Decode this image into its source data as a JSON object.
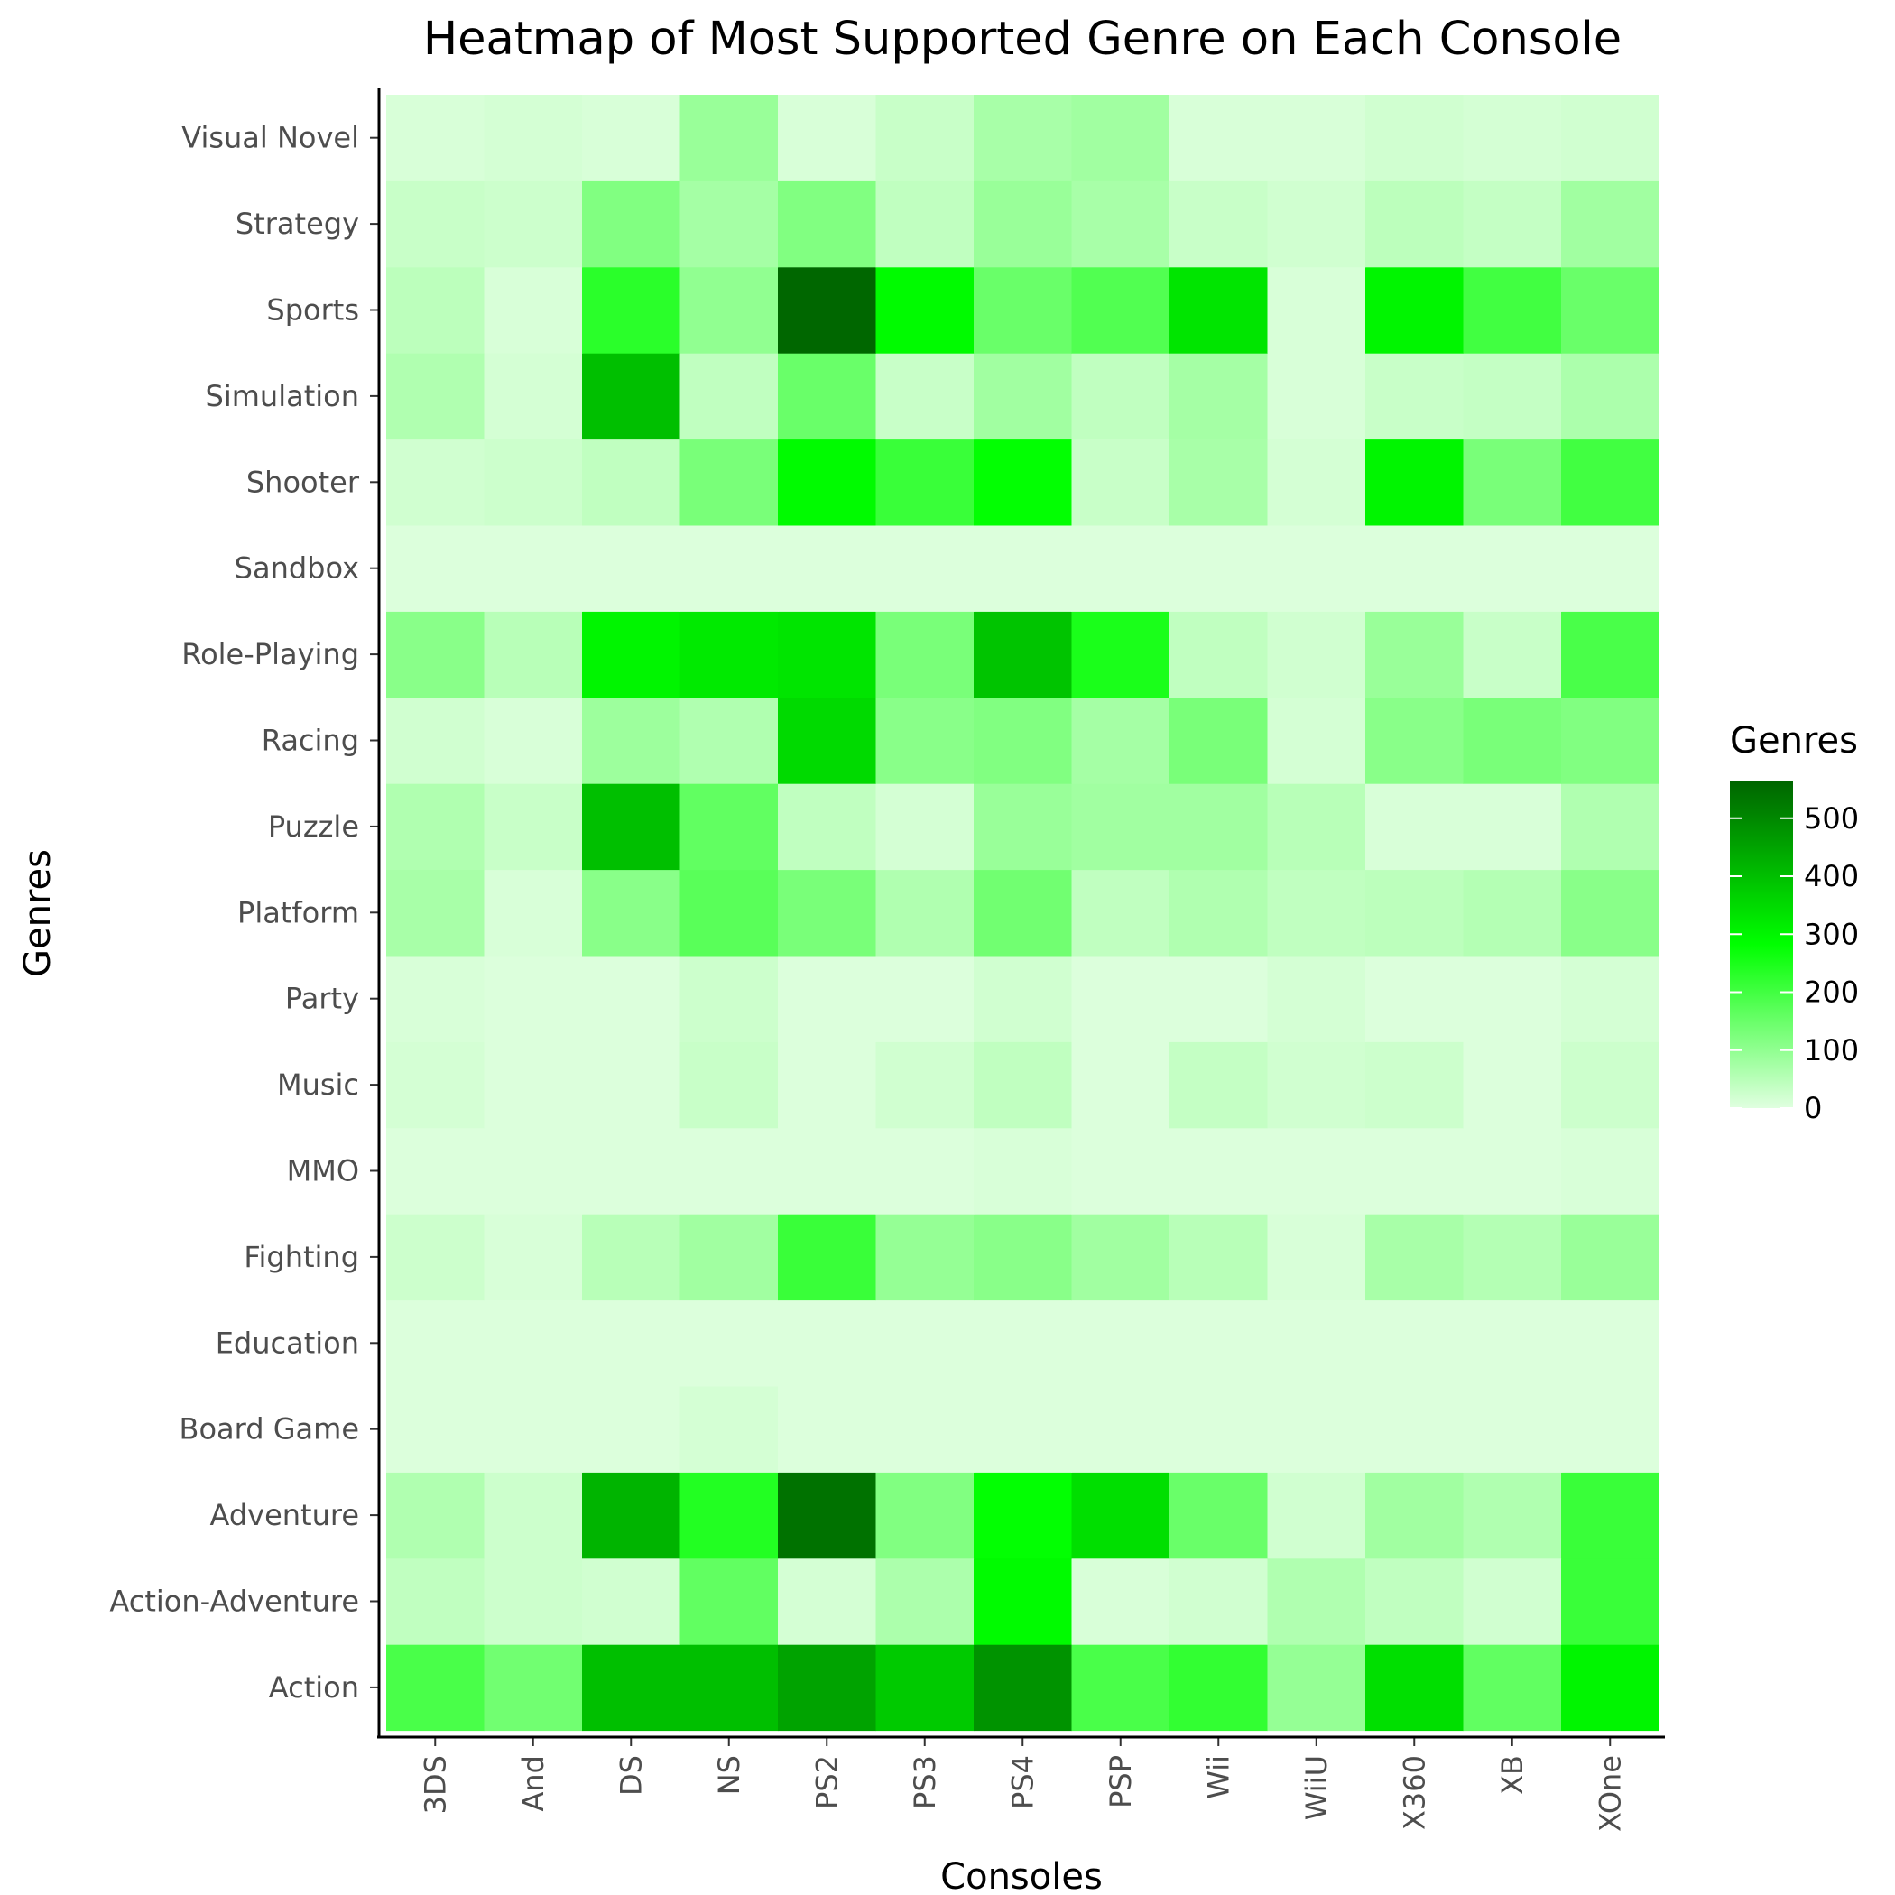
{
  "chart_data": {
    "type": "heatmap",
    "title": "Heatmap of Most Supported Genre on Each Console",
    "xlabel": "Consoles",
    "ylabel": "Genres",
    "x_categories": [
      "3DS",
      "And",
      "DS",
      "NS",
      "PS2",
      "PS3",
      "PS4",
      "PSP",
      "Wii",
      "WiiU",
      "X360",
      "XB",
      "XOne"
    ],
    "y_categories": [
      "Action",
      "Action-Adventure",
      "Adventure",
      "Board Game",
      "Education",
      "Fighting",
      "MMO",
      "Music",
      "Party",
      "Platform",
      "Puzzle",
      "Racing",
      "Role-Playing",
      "Sandbox",
      "Shooter",
      "Simulation",
      "Sports",
      "Strategy",
      "Visual Novel"
    ],
    "values": [
      [
        190,
        140,
        400,
        400,
        450,
        380,
        480,
        190,
        220,
        95,
        340,
        160,
        300
      ],
      [
        40,
        25,
        20,
        160,
        15,
        65,
        290,
        10,
        20,
        60,
        40,
        20,
        210
      ],
      [
        60,
        25,
        420,
        240,
        540,
        120,
        280,
        340,
        150,
        20,
        80,
        60,
        210
      ],
      [
        5,
        5,
        5,
        15,
        5,
        5,
        5,
        5,
        5,
        5,
        5,
        5,
        5
      ],
      [
        5,
        5,
        5,
        5,
        5,
        5,
        5,
        5,
        5,
        5,
        5,
        5,
        5
      ],
      [
        25,
        10,
        50,
        80,
        210,
        95,
        110,
        80,
        50,
        10,
        70,
        55,
        90
      ],
      [
        5,
        5,
        5,
        5,
        5,
        5,
        10,
        5,
        5,
        5,
        5,
        5,
        10
      ],
      [
        15,
        5,
        5,
        30,
        5,
        20,
        40,
        5,
        35,
        20,
        25,
        5,
        25
      ],
      [
        10,
        5,
        5,
        25,
        5,
        5,
        20,
        5,
        5,
        15,
        5,
        5,
        15
      ],
      [
        70,
        10,
        110,
        170,
        130,
        60,
        140,
        40,
        60,
        40,
        45,
        55,
        110
      ],
      [
        60,
        30,
        400,
        160,
        40,
        15,
        90,
        80,
        80,
        50,
        10,
        10,
        60
      ],
      [
        20,
        10,
        85,
        60,
        350,
        110,
        120,
        75,
        130,
        15,
        110,
        130,
        120
      ],
      [
        110,
        50,
        300,
        320,
        330,
        130,
        390,
        250,
        40,
        20,
        90,
        30,
        190
      ],
      [
        5,
        5,
        5,
        5,
        5,
        5,
        5,
        5,
        5,
        5,
        5,
        5,
        5
      ],
      [
        20,
        25,
        40,
        130,
        290,
        210,
        280,
        30,
        70,
        15,
        300,
        130,
        200
      ],
      [
        60,
        15,
        400,
        40,
        150,
        30,
        80,
        40,
        75,
        10,
        30,
        35,
        65
      ],
      [
        45,
        10,
        230,
        100,
        560,
        290,
        150,
        180,
        330,
        10,
        300,
        200,
        150
      ],
      [
        30,
        25,
        120,
        75,
        120,
        40,
        90,
        70,
        30,
        20,
        45,
        35,
        80
      ],
      [
        10,
        15,
        10,
        90,
        10,
        30,
        70,
        80,
        10,
        10,
        20,
        15,
        20
      ]
    ],
    "legend": {
      "title": "Genres",
      "breaks": [
        0,
        100,
        200,
        300,
        400,
        500
      ],
      "range": [
        0,
        565
      ],
      "position": "right",
      "colors": [
        "#e0ffe0",
        "#00ff00",
        "#006400"
      ]
    },
    "grid": false
  }
}
